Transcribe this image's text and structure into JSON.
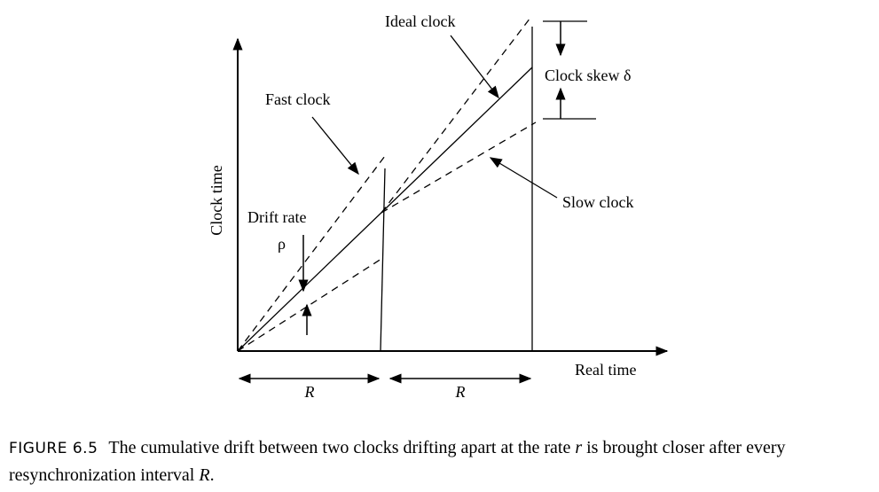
{
  "diagram": {
    "axis_y_label": "Clock time",
    "axis_x_label": "Real time",
    "ideal_clock_label": "Ideal clock",
    "fast_clock_label": "Fast clock",
    "slow_clock_label": "Slow clock",
    "clock_skew_label": "Clock skew δ",
    "drift_rate_label": "Drift rate",
    "drift_symbol": "ρ",
    "interval_label_1": "R",
    "interval_label_2": "R"
  },
  "caption": {
    "label": "FIGURE 6.5",
    "text_before": "The cumulative drift between two clocks drifting apart at the rate ",
    "rate_symbol": "r",
    "text_middle": " is brought closer after every resynchronization interval ",
    "interval_symbol": "R",
    "text_end": "."
  }
}
